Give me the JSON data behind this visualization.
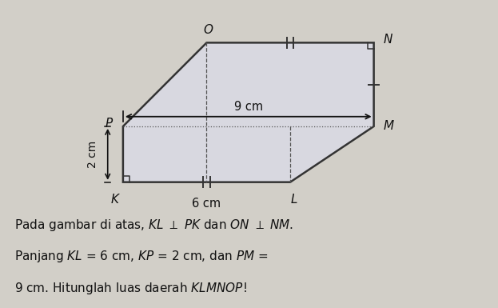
{
  "bg_color": "#d2cfc8",
  "shape_fill": "#d8d8e0",
  "shape_edge": "#333333",
  "label_K": "K",
  "label_L": "L",
  "label_M": "M",
  "label_N": "N",
  "label_O": "O",
  "label_P": "P",
  "dim_9cm": "9 cm",
  "dim_6cm": "6 cm",
  "dim_2cm": "2 cm",
  "K": [
    0.0,
    0.0
  ],
  "L": [
    6.0,
    0.0
  ],
  "P": [
    0.0,
    2.0
  ],
  "M": [
    9.0,
    2.0
  ],
  "O": [
    3.0,
    5.0
  ],
  "N": [
    9.0,
    5.0
  ],
  "fig_width": 6.23,
  "fig_height": 3.85,
  "dpi": 100
}
